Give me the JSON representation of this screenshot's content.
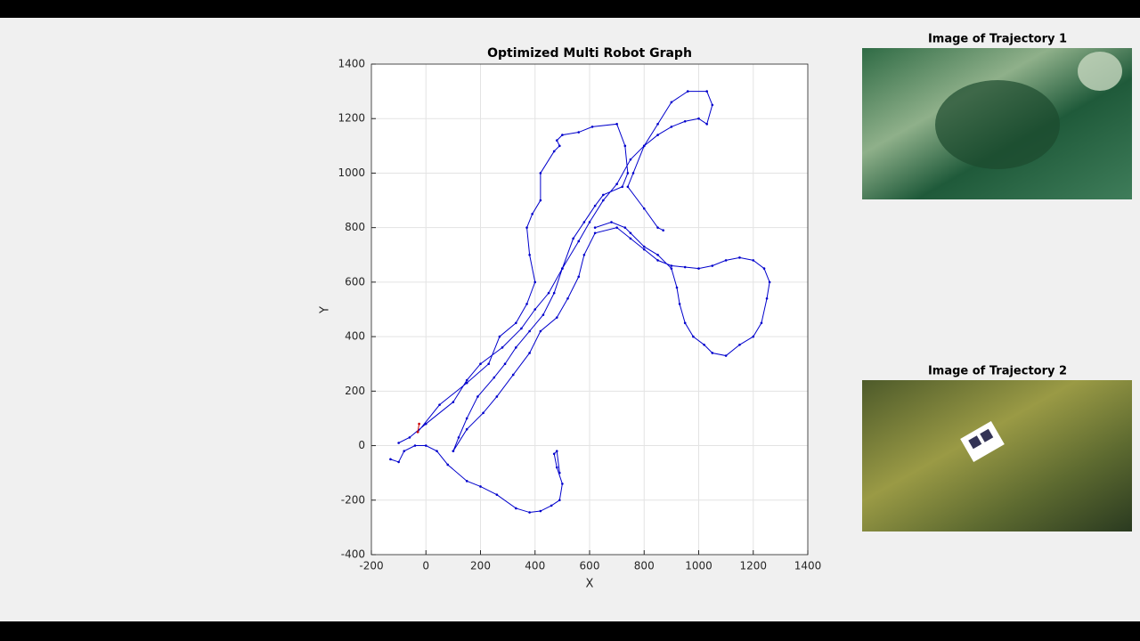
{
  "chart_data": {
    "type": "line",
    "title": "Optimized Multi Robot Graph",
    "xlabel": "X",
    "ylabel": "Y",
    "xlim": [
      -200,
      1400
    ],
    "xticks": [
      -200,
      0,
      200,
      400,
      600,
      800,
      1000,
      1200,
      1400
    ],
    "ylim": [
      -400,
      1400
    ],
    "yticks": [
      -400,
      -200,
      0,
      200,
      400,
      600,
      800,
      1000,
      1200,
      1400
    ],
    "grid": true,
    "markers": true,
    "series": [
      {
        "color": "#0000cc",
        "x": [
          -100,
          -60,
          0,
          100,
          150,
          200,
          280,
          350,
          400,
          450,
          500,
          560,
          600,
          650,
          700,
          750,
          800,
          850,
          900,
          950,
          1000,
          1030,
          1050,
          1030,
          960,
          900,
          850,
          800,
          760,
          740,
          800,
          850,
          870,
          null,
          -30,
          50,
          150,
          230,
          270,
          330,
          370,
          400,
          380,
          370,
          390,
          420,
          420,
          470,
          490,
          480,
          500,
          560,
          610,
          700,
          730,
          740,
          720,
          650,
          620,
          580,
          540,
          500,
          470,
          430,
          380,
          330,
          290,
          250,
          190,
          150,
          120,
          100,
          null,
          100,
          150,
          210,
          260,
          320,
          380,
          420,
          480,
          520,
          560,
          580,
          620,
          700,
          750,
          800,
          850,
          900,
          950,
          1000,
          1050,
          1100,
          1150,
          1200,
          1240,
          1260,
          1250,
          1230,
          1200,
          1150,
          1100,
          1050,
          1020,
          980,
          950,
          930,
          920,
          900,
          850,
          800,
          750,
          730,
          680,
          620,
          null,
          -130,
          -100,
          -80,
          -40,
          0,
          40,
          80,
          150,
          200,
          260,
          330,
          380,
          420,
          460,
          490,
          500,
          480,
          470,
          480,
          490
        ],
        "y": [
          10,
          30,
          80,
          160,
          240,
          300,
          360,
          430,
          500,
          560,
          650,
          750,
          820,
          900,
          960,
          1050,
          1100,
          1140,
          1170,
          1190,
          1200,
          1180,
          1250,
          1300,
          1300,
          1260,
          1180,
          1100,
          1000,
          950,
          870,
          800,
          790,
          null,
          50,
          150,
          230,
          300,
          400,
          450,
          520,
          600,
          700,
          800,
          850,
          900,
          1000,
          1080,
          1100,
          1120,
          1140,
          1150,
          1170,
          1180,
          1100,
          1000,
          950,
          920,
          880,
          820,
          760,
          650,
          560,
          480,
          420,
          360,
          300,
          250,
          180,
          100,
          30,
          -20,
          null,
          -20,
          60,
          120,
          180,
          260,
          340,
          420,
          470,
          540,
          620,
          700,
          780,
          800,
          760,
          720,
          680,
          660,
          655,
          650,
          660,
          680,
          690,
          680,
          650,
          600,
          540,
          450,
          400,
          370,
          330,
          340,
          370,
          400,
          450,
          520,
          580,
          650,
          700,
          730,
          780,
          800,
          820,
          800,
          null,
          -50,
          -60,
          -20,
          0,
          0,
          -20,
          -70,
          -130,
          -150,
          -180,
          -230,
          -245,
          -240,
          -220,
          -200,
          -140,
          -80,
          -30,
          -20,
          -100
        ]
      },
      {
        "color": "#cc0000",
        "x": [
          -30,
          -25
        ],
        "y": [
          50,
          80
        ]
      }
    ]
  },
  "images": [
    {
      "title": "Image of Trajectory 1"
    },
    {
      "title": "Image of Trajectory 2"
    }
  ]
}
